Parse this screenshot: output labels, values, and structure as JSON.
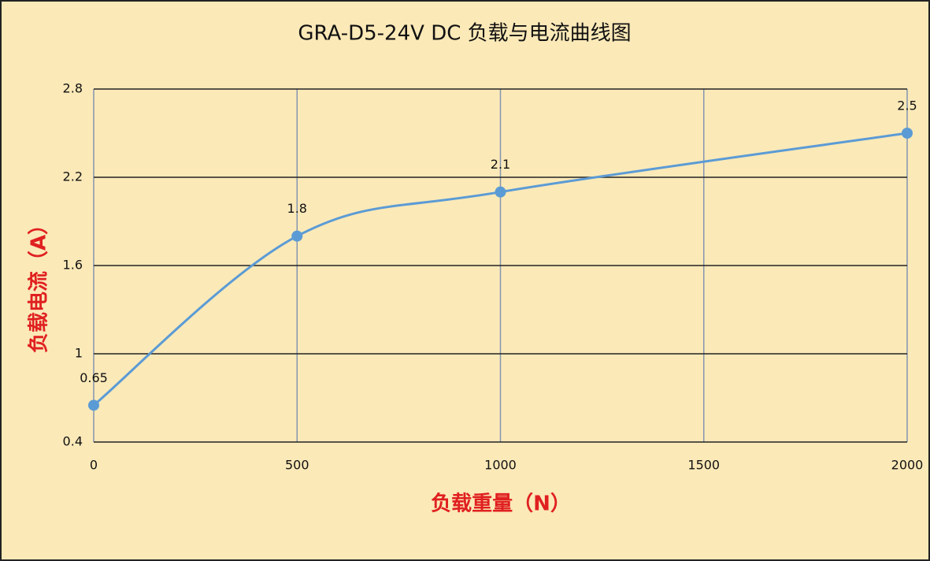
{
  "chart_data": {
    "type": "line",
    "title": "GRA-D5-24V DC 负载与电流曲线图",
    "x_label": "负载重量（N）",
    "y_label": "负载电流（A）",
    "x": [
      0,
      500,
      1000,
      2000
    ],
    "series": [
      {
        "name": "负载电流",
        "color": "#5b9bd5",
        "values": [
          0.65,
          1.8,
          2.1,
          2.5
        ]
      }
    ],
    "xlim": [
      0,
      2000
    ],
    "xticks": [
      0,
      500,
      1000,
      1500,
      2000
    ],
    "ylim": [
      0.4,
      2.8
    ],
    "yticks": [
      0.4,
      1,
      1.6,
      2.2,
      2.8
    ],
    "grid": true,
    "smooth": true,
    "data_labels": true
  }
}
